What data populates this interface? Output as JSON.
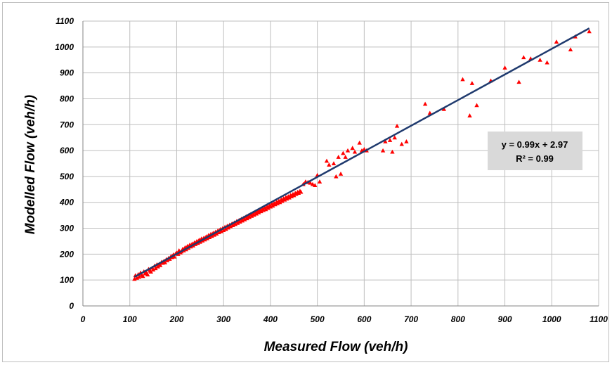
{
  "chart_data": {
    "type": "scatter",
    "title": "",
    "xlabel": "Measured  Flow  (veh/h)",
    "ylabel": "Modelled  Flow  (veh/h)",
    "xlim": [
      0,
      1100
    ],
    "ylim": [
      0,
      1100
    ],
    "xticks": [
      "0",
      "100",
      "200",
      "300",
      "400",
      "500",
      "600",
      "700",
      "800",
      "900",
      "1000",
      "1100"
    ],
    "yticks": [
      "0",
      "100",
      "200",
      "300",
      "400",
      "500",
      "600",
      "700",
      "800",
      "900",
      "1000",
      "1100"
    ],
    "grid": true,
    "marker_color": "#ff0000",
    "trendline": {
      "slope": 0.99,
      "intercept": 2.97,
      "color": "#1f3a6e"
    },
    "annotation": {
      "equation": "y = 0.99x + 2.97",
      "r2": "R² = 0.99"
    },
    "series": [
      {
        "x": [
          110,
          112,
          115,
          118,
          120,
          123,
          125,
          128,
          130,
          133,
          135,
          138,
          140,
          143,
          145,
          148,
          150,
          153,
          155,
          158,
          160,
          163,
          165,
          168,
          170,
          173,
          175,
          178,
          180,
          183,
          185,
          188,
          190,
          193,
          195,
          198,
          200,
          203,
          205,
          208,
          210,
          213,
          215,
          218,
          220,
          223,
          225,
          228,
          230,
          233,
          235,
          238,
          240,
          243,
          245,
          248,
          250,
          253,
          255,
          258,
          260,
          263,
          265,
          268,
          270,
          273,
          275,
          278,
          280,
          283,
          285,
          288,
          290,
          293,
          295,
          298,
          300,
          303,
          305,
          308,
          310,
          313,
          315,
          318,
          320,
          323,
          325,
          328,
          330,
          333,
          335,
          338,
          340,
          343,
          345,
          348,
          350,
          353,
          355,
          358,
          360,
          363,
          365,
          368,
          370,
          373,
          375,
          378,
          380,
          383,
          385,
          388,
          390,
          393,
          395,
          398,
          400,
          403,
          405,
          408,
          410,
          413,
          415,
          418,
          420,
          423,
          425,
          428,
          430,
          433,
          435,
          438,
          440,
          443,
          445,
          448,
          450,
          453,
          455,
          458,
          460,
          463,
          465,
          470,
          475,
          480,
          485,
          490,
          495,
          500,
          505,
          520,
          525,
          535,
          540,
          545,
          550,
          555,
          560,
          565,
          575,
          580,
          590,
          595,
          600,
          605,
          640,
          645,
          655,
          660,
          665,
          670,
          680,
          690,
          730,
          740,
          770,
          810,
          825,
          830,
          840,
          870,
          900,
          930,
          940,
          955,
          975,
          990,
          1010,
          1040,
          1050,
          1080
        ],
        "y": [
          104,
          118,
          108,
          122,
          112,
          128,
          119,
          115,
          133,
          125,
          130,
          121,
          142,
          136,
          132,
          147,
          140,
          155,
          145,
          160,
          152,
          162,
          157,
          170,
          166,
          174,
          168,
          180,
          176,
          185,
          181,
          192,
          188,
          198,
          190,
          202,
          205,
          200,
          214,
          206,
          210,
          220,
          214,
          226,
          218,
          231,
          224,
          236,
          229,
          240,
          233,
          245,
          238,
          250,
          243,
          255,
          247,
          260,
          252,
          263,
          256,
          268,
          261,
          273,
          265,
          278,
          270,
          282,
          274,
          286,
          279,
          291,
          284,
          296,
          288,
          300,
          292,
          305,
          297,
          309,
          302,
          313,
          307,
          318,
          311,
          322,
          316,
          327,
          320,
          331,
          325,
          336,
          329,
          340,
          334,
          345,
          338,
          349,
          343,
          354,
          347,
          358,
          352,
          363,
          356,
          366,
          361,
          371,
          365,
          375,
          370,
          380,
          373,
          384,
          378,
          388,
          383,
          394,
          387,
          397,
          392,
          402,
          396,
          406,
          400,
          411,
          405,
          415,
          410,
          420,
          414,
          423,
          418,
          428,
          423,
          432,
          427,
          436,
          432,
          440,
          436,
          444,
          440,
          470,
          480,
          478,
          475,
          470,
          466,
          505,
          480,
          560,
          545,
          550,
          500,
          575,
          510,
          590,
          575,
          600,
          610,
          595,
          630,
          600,
          605,
          600,
          600,
          635,
          640,
          595,
          650,
          695,
          625,
          635,
          780,
          745,
          760,
          875,
          735,
          860,
          775,
          870,
          920,
          865,
          960,
          955,
          950,
          940,
          1020,
          990,
          1040,
          1060
        ]
      }
    ]
  }
}
